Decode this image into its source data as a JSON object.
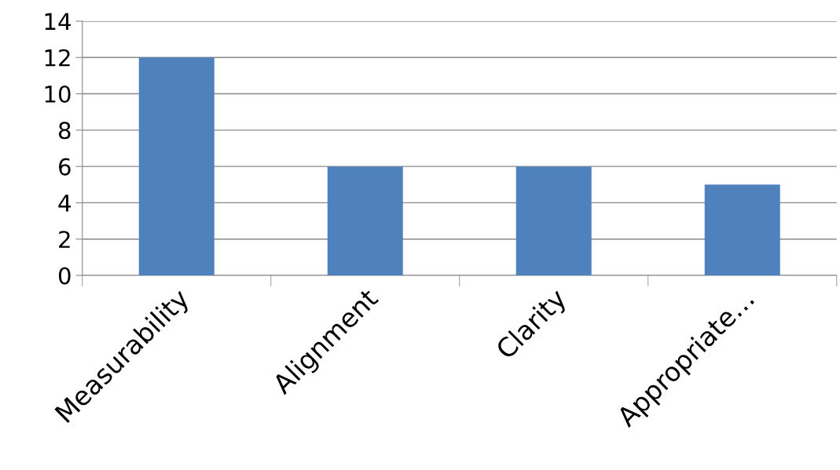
{
  "chart_data": {
    "type": "bar",
    "categories": [
      "Measurability",
      "Alignment",
      "Clarity",
      "Appropriate…"
    ],
    "values": [
      12,
      6,
      6,
      5
    ],
    "color": "#4f81bd",
    "ylim": [
      0,
      14
    ],
    "yticks": [
      0,
      2,
      4,
      6,
      8,
      10,
      12,
      14
    ],
    "grid": "y",
    "legend": false
  }
}
